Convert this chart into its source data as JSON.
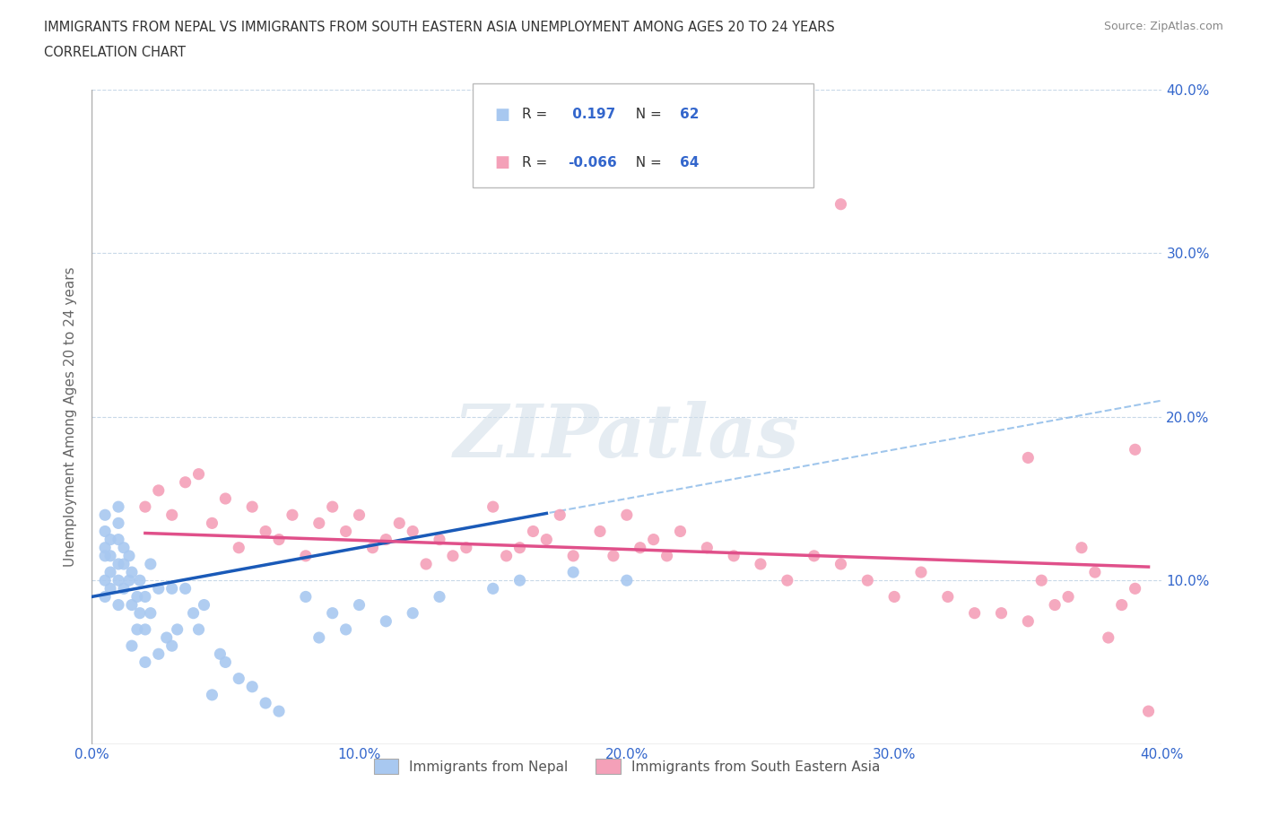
{
  "title_line1": "IMMIGRANTS FROM NEPAL VS IMMIGRANTS FROM SOUTH EASTERN ASIA UNEMPLOYMENT AMONG AGES 20 TO 24 YEARS",
  "title_line2": "CORRELATION CHART",
  "source_text": "Source: ZipAtlas.com",
  "ylabel": "Unemployment Among Ages 20 to 24 years",
  "xlim": [
    0.0,
    0.4
  ],
  "ylim": [
    0.0,
    0.4
  ],
  "xtick_vals": [
    0.0,
    0.1,
    0.2,
    0.3,
    0.4
  ],
  "xtick_labels": [
    "0.0%",
    "10.0%",
    "20.0%",
    "30.0%",
    "40.0%"
  ],
  "ytick_vals": [
    0.1,
    0.2,
    0.3,
    0.4
  ],
  "ytick_labels": [
    "10.0%",
    "20.0%",
    "30.0%",
    "40.0%"
  ],
  "nepal_color": "#a8c8f0",
  "sea_color": "#f4a0b8",
  "nepal_trend_color": "#1a5ab8",
  "sea_trend_color": "#e0508a",
  "nepal_R": 0.197,
  "nepal_N": 62,
  "sea_R": -0.066,
  "sea_N": 64,
  "watermark": "ZIPatlas",
  "nepal_scatter_x": [
    0.005,
    0.005,
    0.005,
    0.005,
    0.005,
    0.005,
    0.007,
    0.007,
    0.007,
    0.007,
    0.01,
    0.01,
    0.01,
    0.01,
    0.01,
    0.01,
    0.012,
    0.012,
    0.012,
    0.014,
    0.014,
    0.015,
    0.015,
    0.015,
    0.017,
    0.017,
    0.018,
    0.018,
    0.02,
    0.02,
    0.02,
    0.022,
    0.022,
    0.025,
    0.025,
    0.028,
    0.03,
    0.03,
    0.032,
    0.035,
    0.038,
    0.04,
    0.042,
    0.045,
    0.048,
    0.05,
    0.055,
    0.06,
    0.065,
    0.07,
    0.08,
    0.085,
    0.09,
    0.095,
    0.1,
    0.11,
    0.12,
    0.13,
    0.15,
    0.16,
    0.18,
    0.2
  ],
  "nepal_scatter_y": [
    0.09,
    0.1,
    0.115,
    0.12,
    0.13,
    0.14,
    0.095,
    0.105,
    0.115,
    0.125,
    0.085,
    0.1,
    0.11,
    0.125,
    0.135,
    0.145,
    0.095,
    0.11,
    0.12,
    0.1,
    0.115,
    0.06,
    0.085,
    0.105,
    0.07,
    0.09,
    0.08,
    0.1,
    0.05,
    0.07,
    0.09,
    0.08,
    0.11,
    0.055,
    0.095,
    0.065,
    0.06,
    0.095,
    0.07,
    0.095,
    0.08,
    0.07,
    0.085,
    0.03,
    0.055,
    0.05,
    0.04,
    0.035,
    0.025,
    0.02,
    0.09,
    0.065,
    0.08,
    0.07,
    0.085,
    0.075,
    0.08,
    0.09,
    0.095,
    0.1,
    0.105,
    0.1
  ],
  "sea_scatter_x": [
    0.02,
    0.025,
    0.03,
    0.035,
    0.04,
    0.045,
    0.05,
    0.055,
    0.06,
    0.065,
    0.07,
    0.075,
    0.08,
    0.085,
    0.09,
    0.095,
    0.1,
    0.105,
    0.11,
    0.115,
    0.12,
    0.125,
    0.13,
    0.135,
    0.14,
    0.15,
    0.155,
    0.16,
    0.165,
    0.17,
    0.175,
    0.18,
    0.19,
    0.195,
    0.2,
    0.205,
    0.21,
    0.215,
    0.22,
    0.23,
    0.24,
    0.25,
    0.26,
    0.27,
    0.28,
    0.29,
    0.3,
    0.31,
    0.32,
    0.33,
    0.34,
    0.35,
    0.355,
    0.36,
    0.365,
    0.37,
    0.375,
    0.38,
    0.385,
    0.39,
    0.35,
    0.39,
    0.28,
    0.395
  ],
  "sea_scatter_y": [
    0.145,
    0.155,
    0.14,
    0.16,
    0.165,
    0.135,
    0.15,
    0.12,
    0.145,
    0.13,
    0.125,
    0.14,
    0.115,
    0.135,
    0.145,
    0.13,
    0.14,
    0.12,
    0.125,
    0.135,
    0.13,
    0.11,
    0.125,
    0.115,
    0.12,
    0.145,
    0.115,
    0.12,
    0.13,
    0.125,
    0.14,
    0.115,
    0.13,
    0.115,
    0.14,
    0.12,
    0.125,
    0.115,
    0.13,
    0.12,
    0.115,
    0.11,
    0.1,
    0.115,
    0.11,
    0.1,
    0.09,
    0.105,
    0.09,
    0.08,
    0.08,
    0.075,
    0.1,
    0.085,
    0.09,
    0.12,
    0.105,
    0.065,
    0.085,
    0.095,
    0.175,
    0.18,
    0.33,
    0.02
  ]
}
